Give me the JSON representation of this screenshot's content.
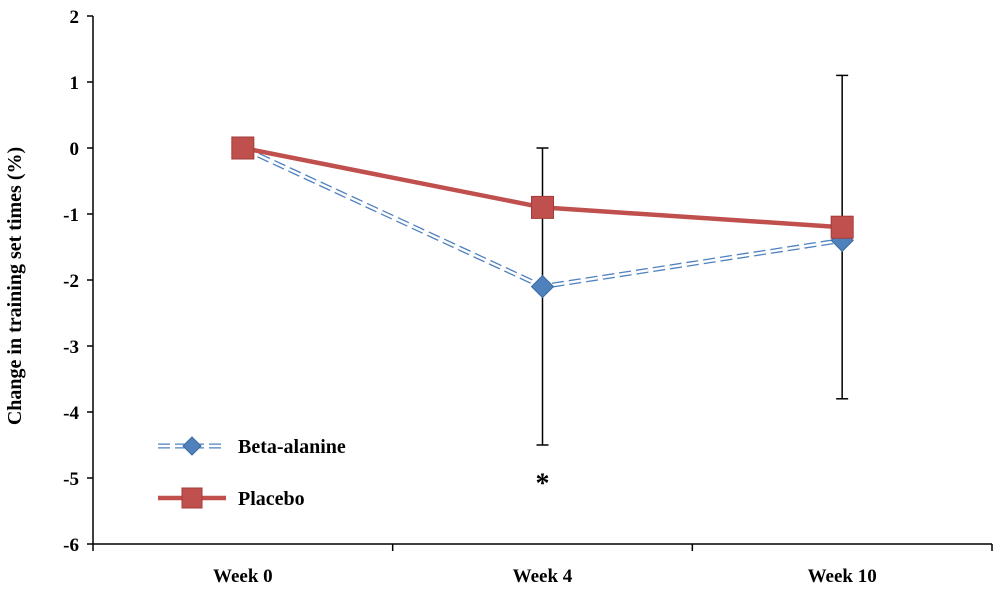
{
  "chart_data": {
    "type": "line",
    "title": "",
    "xlabel": "",
    "ylabel": "Change in training set times (%)",
    "categories": [
      "Week 0",
      "Week 4",
      "Week 10"
    ],
    "ylim": [
      -6,
      2
    ],
    "yticks": [
      2,
      1,
      0,
      -1,
      -2,
      -3,
      -4,
      -5,
      -6
    ],
    "grid": false,
    "legend_position": "bottom-left",
    "series": [
      {
        "name": "Beta-alanine",
        "values": [
          0,
          -2.1,
          -1.4
        ],
        "line_style": "dashed",
        "marker": "diamond",
        "color": "#4f81bd"
      },
      {
        "name": "Placebo",
        "values": [
          0,
          -0.9,
          -1.2
        ],
        "line_style": "solid",
        "marker": "square",
        "color": "#c0504d"
      }
    ],
    "error_bars": [
      {
        "category": "Week 4",
        "lower": -4.5,
        "upper": 0
      },
      {
        "category": "Week 10",
        "lower": -3.8,
        "upper": 1.1
      }
    ],
    "annotations": [
      {
        "text": "*",
        "category": "Week 4",
        "y": -4.95
      }
    ]
  }
}
